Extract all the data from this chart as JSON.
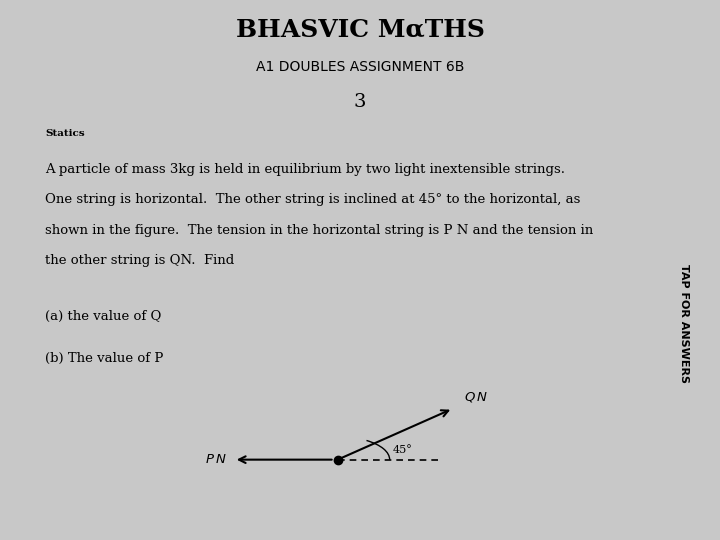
{
  "title_line1": "BHASVIC MαTHS",
  "title_line2": "A1 DOUBLES ASSIGNMENT 6B",
  "header_bg": "#FFC000",
  "header_text_color": "#000000",
  "page_number": "3",
  "bg_color": "#C8C8C8",
  "content_bg": "#FFFFFF",
  "section_label": "Statics",
  "para1": "A particle of mass 3kg is held in equilibrium by two light inextensible strings.",
  "para2": "One string is horizontal.  The other string is inclined at 45° to the horizontal, as",
  "para3": "shown in the figure.  The tension in the horizontal string is P N and the tension in",
  "para4": "the other string is QN.  Find",
  "part_a": "(a) the value of Q",
  "part_b": "(b) The value of P",
  "sidebar_text": "TAP FOR ANSWERS",
  "sidebar_bg": "#FFC000",
  "sidebar_text_color": "#000000",
  "content_border_color": "#000000",
  "angle_label": "45°"
}
